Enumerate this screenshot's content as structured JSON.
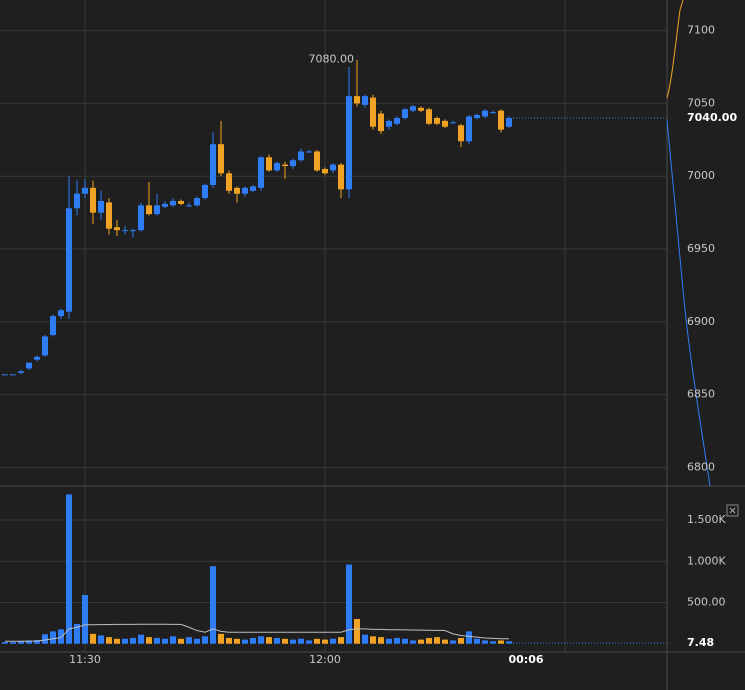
{
  "chart_data": {
    "type": "candlestick",
    "categories": [
      null,
      null,
      null,
      null,
      null,
      null,
      null,
      null,
      null,
      null,
      "11:30",
      null,
      null,
      null,
      null,
      null,
      null,
      null,
      null,
      null,
      null,
      null,
      null,
      null,
      null,
      null,
      null,
      null,
      null,
      null,
      null,
      null,
      null,
      null,
      null,
      null,
      null,
      null,
      null,
      null,
      "12:00",
      null,
      null,
      null,
      null,
      null,
      null,
      null,
      null,
      null,
      null,
      null,
      null,
      null,
      null,
      null,
      null,
      null,
      null,
      null,
      null,
      null,
      null,
      null
    ],
    "open": [
      6864,
      6864,
      6865,
      6868,
      6874,
      6877,
      6891,
      6904,
      6907,
      6978,
      6988,
      6992,
      6975,
      6982,
      6965,
      6963,
      6963,
      6963,
      6980,
      6974,
      6979,
      6980,
      6983,
      6980,
      6980,
      6985,
      6994,
      7022,
      7002,
      6992,
      6988,
      6990,
      6992,
      7013,
      7004,
      7008,
      7007,
      7011,
      7017,
      7017,
      7005,
      7004,
      7008,
      6991,
      7055,
      7049,
      7054,
      7043,
      7034,
      7036,
      7040,
      7045,
      7047,
      7046,
      7040,
      7038,
      7037,
      7035,
      7024,
      7040,
      7041,
      7044,
      7045,
      7034
    ],
    "high": [
      6864,
      6864,
      6867,
      6872,
      6877,
      6891,
      6905,
      6909,
      7000,
      6997,
      6998,
      6997,
      6990,
      6985,
      6970,
      6966,
      6964,
      6982,
      6996,
      6988,
      6983,
      6985,
      6984,
      6982,
      6986,
      6995,
      7030,
      7038,
      7004,
      6993,
      6993,
      6994,
      7014,
      7015,
      7010,
      7010,
      7012,
      7019,
      7018,
      7018,
      7006,
      7009,
      7009,
      7075,
      7080,
      7056,
      7056,
      7045,
      7039,
      7041,
      7047,
      7049,
      7048,
      7047,
      7041,
      7039,
      7038,
      7036,
      7042,
      7043,
      7046,
      7045,
      7046,
      7041
    ],
    "low": [
      6864,
      6864,
      6864,
      6867,
      6873,
      6876,
      6890,
      6902,
      6902,
      6973,
      6985,
      6967,
      6970,
      6960,
      6959,
      6960,
      6958,
      6962,
      6973,
      6973,
      6978,
      6979,
      6980,
      6979,
      6979,
      6984,
      6992,
      7000,
      6988,
      6982,
      6986,
      6989,
      6990,
      7003,
      7003,
      6998,
      7005,
      7010,
      7016,
      7003,
      7001,
      7002,
      6985,
      6985,
      7048,
      7047,
      7032,
      7029,
      7032,
      7035,
      7039,
      7044,
      7044,
      7035,
      7035,
      7033,
      7036,
      7020,
      7022,
      7039,
      7040,
      7043,
      7030,
      7033
    ],
    "close": [
      6864,
      6864,
      6866,
      6872,
      6876,
      6890,
      6904,
      6908,
      6978,
      6988,
      6992,
      6975,
      6983,
      6964,
      6963,
      6963,
      6963,
      6980,
      6974,
      6980,
      6981,
      6983,
      6981,
      6980,
      6985,
      6994,
      7022,
      7002,
      6990,
      6988,
      6992,
      6993,
      7013,
      7004,
      7009,
      7007,
      7011,
      7017,
      7017,
      7004,
      7002,
      7008,
      6991,
      7055,
      7050,
      7055,
      7034,
      7031,
      7038,
      7040,
      7046,
      7048,
      7045,
      7036,
      7036,
      7034,
      7037,
      7024,
      7041,
      7042,
      7045,
      7044,
      7032,
      7040
    ],
    "up_color": "#2f7df6",
    "down_color": "#f0a322",
    "ylim": [
      6788,
      7121
    ],
    "yticks": [
      6800,
      6850,
      6900,
      6950,
      7000,
      7050,
      7100
    ],
    "grid": true,
    "max_annotation": {
      "value": 7080,
      "label": "7080.00"
    },
    "last_price": {
      "value": 7040,
      "label": "7040.00"
    },
    "countdown": "00:06",
    "volume": {
      "values": [
        20,
        20,
        30,
        40,
        45,
        115,
        150,
        175,
        1810,
        240,
        590,
        120,
        100,
        80,
        60,
        60,
        70,
        110,
        80,
        70,
        60,
        90,
        60,
        80,
        60,
        90,
        940,
        120,
        70,
        60,
        50,
        70,
        90,
        80,
        70,
        60,
        50,
        60,
        40,
        60,
        50,
        60,
        80,
        960,
        300,
        110,
        90,
        80,
        60,
        70,
        60,
        40,
        50,
        70,
        80,
        50,
        40,
        70,
        150,
        60,
        40,
        30,
        40,
        30
      ],
      "ma": [
        30,
        30,
        30,
        32,
        34,
        45,
        60,
        75,
        180,
        200,
        230,
        230,
        232,
        234,
        235,
        235,
        235,
        236,
        236,
        236,
        236,
        235,
        235,
        200,
        160,
        140,
        180,
        150,
        140,
        140,
        140,
        140,
        140,
        140,
        140,
        140,
        140,
        140,
        140,
        140,
        140,
        140,
        140,
        170,
        180,
        180,
        175,
        175,
        170,
        170,
        168,
        166,
        165,
        163,
        162,
        160,
        120,
        100,
        90,
        80,
        70,
        65,
        60,
        60
      ],
      "ma_color": "#bdbdbd",
      "ylim": [
        -100,
        1900
      ],
      "yticks": [
        {
          "value": 500,
          "label": "500.00"
        },
        {
          "value": 1000,
          "label": "1.000K"
        },
        {
          "value": 1500,
          "label": "1.500K"
        }
      ],
      "last": {
        "value": 7.48,
        "label": "7.48"
      }
    }
  }
}
